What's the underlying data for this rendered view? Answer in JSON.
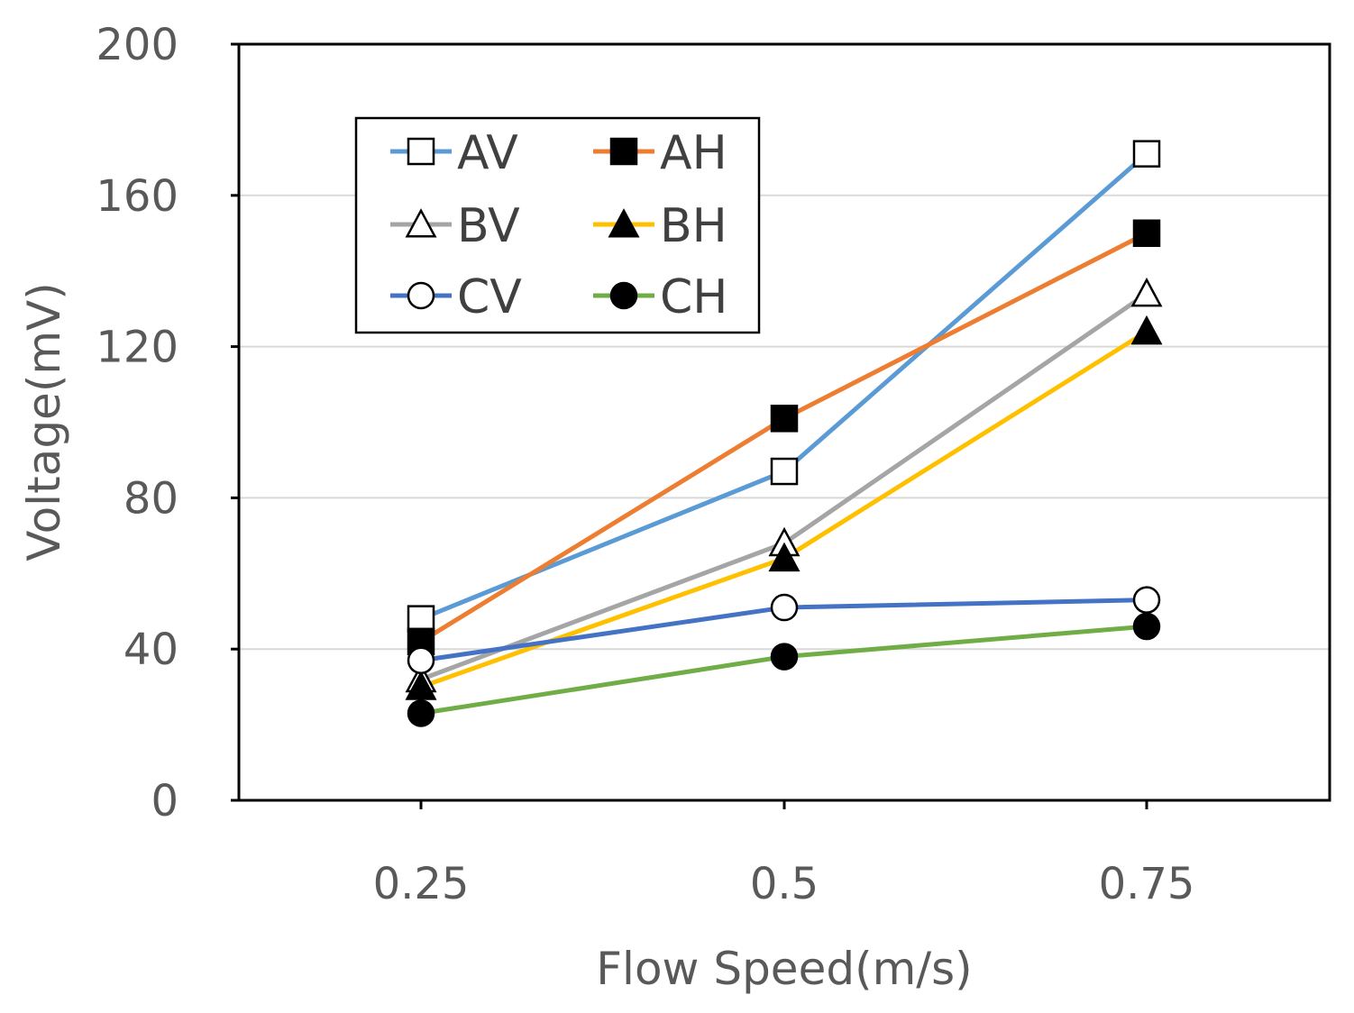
{
  "chart_data": {
    "type": "line",
    "title": "",
    "xlabel": "Flow Speed(m/s)",
    "ylabel": "Voltage(mV)",
    "categories": [
      "0.25",
      "0.5",
      "0.75"
    ],
    "ylim": [
      0,
      200
    ],
    "yticks": [
      0,
      40,
      80,
      120,
      160,
      200
    ],
    "grid": true,
    "legend_position": "top-left",
    "series": [
      {
        "name": "AV",
        "values": [
          48,
          87,
          171
        ],
        "color": "#5B9BD5",
        "marker": "square",
        "filled": false
      },
      {
        "name": "AH",
        "values": [
          42,
          101,
          150
        ],
        "color": "#ED7D31",
        "marker": "square",
        "filled": true
      },
      {
        "name": "BV",
        "values": [
          32,
          68,
          134
        ],
        "color": "#A5A5A5",
        "marker": "triangle",
        "filled": false
      },
      {
        "name": "BH",
        "values": [
          30,
          64,
          124
        ],
        "color": "#FFC000",
        "marker": "triangle",
        "filled": true
      },
      {
        "name": "CV",
        "values": [
          37,
          51,
          53
        ],
        "color": "#4472C4",
        "marker": "circle",
        "filled": false
      },
      {
        "name": "CH",
        "values": [
          23,
          38,
          46
        ],
        "color": "#70AD47",
        "marker": "circle",
        "filled": true
      }
    ]
  }
}
